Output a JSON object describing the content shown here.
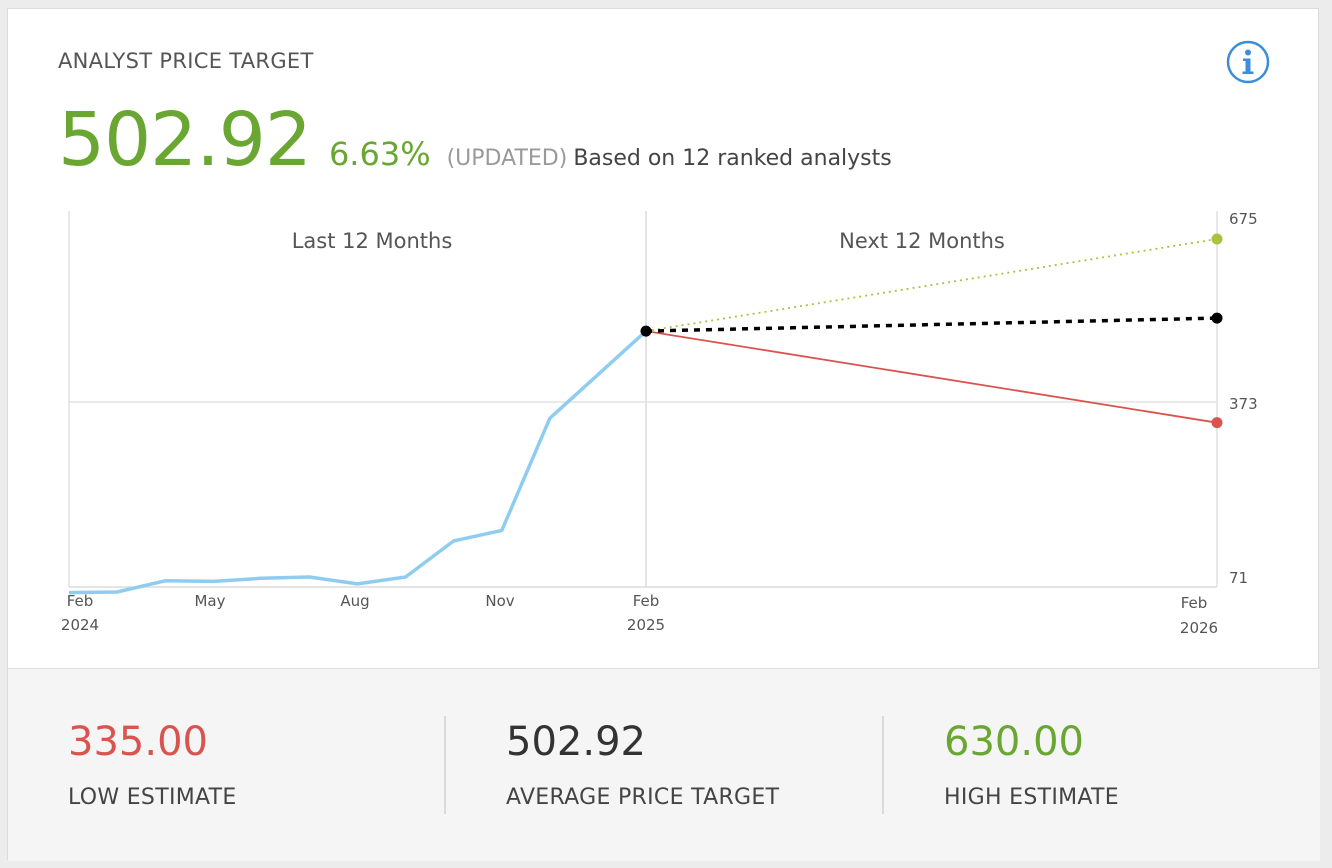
{
  "header": {
    "title": "ANALYST PRICE TARGET",
    "price_target": "502.92",
    "change_pct": "6.63%",
    "updated_tag": "(UPDATED)",
    "based_on": "Based on 12 ranked analysts"
  },
  "colors": {
    "green": "#6aa632",
    "red": "#d9534f",
    "history_line": "#8ecdf0",
    "high_line": "#a8c43f",
    "avg_line": "#000000",
    "info_icon": "#3d8ed8"
  },
  "chart_data": {
    "type": "line",
    "sections": [
      "Last 12 Months",
      "Next 12 Months"
    ],
    "x_ticks": [
      {
        "month": "Feb",
        "year": "2024"
      },
      {
        "month": "May",
        "year": ""
      },
      {
        "month": "Aug",
        "year": ""
      },
      {
        "month": "Nov",
        "year": ""
      },
      {
        "month": "Feb",
        "year": "2025"
      },
      {
        "month": "Feb",
        "year": "2026"
      }
    ],
    "y_ticks": [
      "675",
      "373",
      "71"
    ],
    "ylim": [
      71,
      675
    ],
    "grid": true,
    "series": [
      {
        "kind": "history",
        "x": [
          "2024-02",
          "2024-03",
          "2024-04",
          "2024-05",
          "2024-06",
          "2024-07",
          "2024-08",
          "2024-09",
          "2024-10",
          "2024-11",
          "2024-12",
          "2025-02"
        ],
        "y": [
          62,
          63,
          81,
          80,
          85,
          87,
          76,
          87,
          145,
          162,
          342,
          482
        ]
      },
      {
        "kind": "high",
        "x": [
          "2025-02",
          "2026-02"
        ],
        "y": [
          482,
          630
        ]
      },
      {
        "kind": "average",
        "x": [
          "2025-02",
          "2026-02"
        ],
        "y": [
          482,
          502.92
        ]
      },
      {
        "kind": "low",
        "x": [
          "2025-02",
          "2026-02"
        ],
        "y": [
          482,
          335
        ]
      }
    ]
  },
  "estimates": [
    {
      "value": "335.00",
      "label": "LOW ESTIMATE",
      "color": "#d9534f"
    },
    {
      "value": "502.92",
      "label": "AVERAGE PRICE TARGET",
      "color": "#333333"
    },
    {
      "value": "630.00",
      "label": "HIGH ESTIMATE",
      "color": "#6aa632"
    }
  ]
}
